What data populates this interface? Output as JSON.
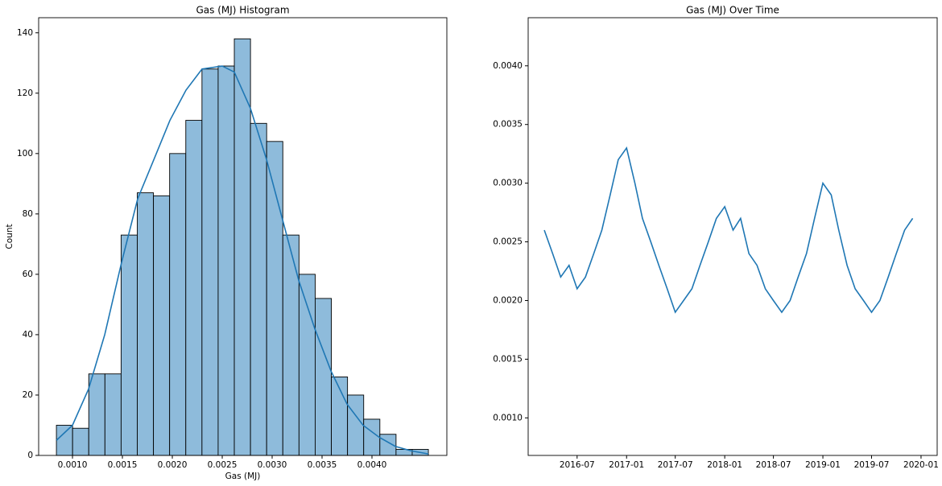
{
  "chart_data": [
    {
      "type": "histogram",
      "title": "Gas (MJ) Histogram",
      "xlabel": "Gas (MJ)",
      "ylabel": "Count",
      "bins": [
        0.000839,
        0.001001,
        0.001163,
        0.001325,
        0.001487,
        0.001649,
        0.001811,
        0.001973,
        0.002135,
        0.002297,
        0.002459,
        0.002621,
        0.002783,
        0.002945,
        0.003107,
        0.003269,
        0.003431,
        0.003593,
        0.003755,
        0.003917,
        0.004079,
        0.004241,
        0.004403,
        0.004565
      ],
      "values": [
        10,
        9,
        27,
        27,
        73,
        87,
        86,
        100,
        111,
        128,
        129,
        138,
        110,
        104,
        73,
        60,
        52,
        26,
        20,
        12,
        7,
        2,
        2
      ],
      "bar_color": "#8ebbdb",
      "edge_color": "#000000",
      "color": "#1f77b4",
      "kde": {
        "x": [
          0.000839,
          0.001,
          0.001161,
          0.001323,
          0.001492,
          0.001653,
          0.001815,
          0.001976,
          0.002137,
          0.002298,
          0.0025,
          0.002621,
          0.002782,
          0.002944,
          0.003105,
          0.003266,
          0.003427,
          0.003589,
          0.00375,
          0.003911,
          0.004073,
          0.004234,
          0.004395,
          0.004565
        ],
        "values": [
          5,
          10,
          22,
          40,
          64,
          85,
          98,
          111,
          121,
          128,
          129,
          127,
          115,
          98,
          78,
          58,
          42,
          28,
          17,
          10,
          6,
          3,
          1.5,
          0.5
        ]
      },
      "xlim": [
        0.000661,
        0.00475
      ],
      "ylim": [
        0,
        145
      ],
      "xticks": [
        {
          "value": 0.001,
          "label": "0.0010"
        },
        {
          "value": 0.0015,
          "label": "0.0015"
        },
        {
          "value": 0.002,
          "label": "0.0020"
        },
        {
          "value": 0.0025,
          "label": "0.0025"
        },
        {
          "value": 0.003,
          "label": "0.0030"
        },
        {
          "value": 0.0035,
          "label": "0.0035"
        },
        {
          "value": 0.004,
          "label": "0.0040"
        }
      ],
      "yticks": [
        0,
        20,
        40,
        60,
        80,
        100,
        120,
        140
      ]
    },
    {
      "type": "line",
      "title": "Gas (MJ) Over Time",
      "color": "#1f77b4",
      "x": [
        "2016-03",
        "2016-04",
        "2016-05",
        "2016-06",
        "2016-07",
        "2016-08",
        "2016-09",
        "2016-10",
        "2016-11",
        "2016-12",
        "2017-01",
        "2017-02",
        "2017-03",
        "2017-04",
        "2017-05",
        "2017-06",
        "2017-07",
        "2017-08",
        "2017-09",
        "2017-10",
        "2017-11",
        "2017-12",
        "2018-01",
        "2018-02",
        "2018-03",
        "2018-04",
        "2018-05",
        "2018-06",
        "2018-07",
        "2018-08",
        "2018-09",
        "2018-10",
        "2018-11",
        "2018-12",
        "2019-01",
        "2019-02",
        "2019-03",
        "2019-04",
        "2019-05",
        "2019-06",
        "2019-07",
        "2019-08",
        "2019-09",
        "2019-10",
        "2019-11",
        "2019-12"
      ],
      "values": [
        0.0026,
        0.0024,
        0.0022,
        0.0023,
        0.0021,
        0.0022,
        0.0024,
        0.0026,
        0.0029,
        0.0032,
        0.0033,
        0.003,
        0.0027,
        0.0025,
        0.0023,
        0.0021,
        0.0019,
        0.002,
        0.0021,
        0.0023,
        0.0025,
        0.0027,
        0.0028,
        0.0026,
        0.0027,
        0.0024,
        0.0023,
        0.0021,
        0.002,
        0.0019,
        0.002,
        0.0022,
        0.0024,
        0.0027,
        0.003,
        0.0029,
        0.0026,
        0.0023,
        0.0021,
        0.002,
        0.0019,
        0.002,
        0.0022,
        0.0024,
        0.0026,
        0.0027
      ],
      "xlim": [
        "2016-01",
        "2020-03"
      ],
      "ylim": [
        0.00068,
        0.00441
      ],
      "xticks": [
        "2016-07",
        "2017-01",
        "2017-07",
        "2018-01",
        "2018-07",
        "2019-01",
        "2019-07",
        "2020-01"
      ],
      "yticks": [
        {
          "value": 0.001,
          "label": "0.0010"
        },
        {
          "value": 0.0015,
          "label": "0.0015"
        },
        {
          "value": 0.002,
          "label": "0.0020"
        },
        {
          "value": 0.0025,
          "label": "0.0025"
        },
        {
          "value": 0.003,
          "label": "0.0030"
        },
        {
          "value": 0.0035,
          "label": "0.0035"
        },
        {
          "value": 0.004,
          "label": "0.0040"
        }
      ]
    }
  ]
}
